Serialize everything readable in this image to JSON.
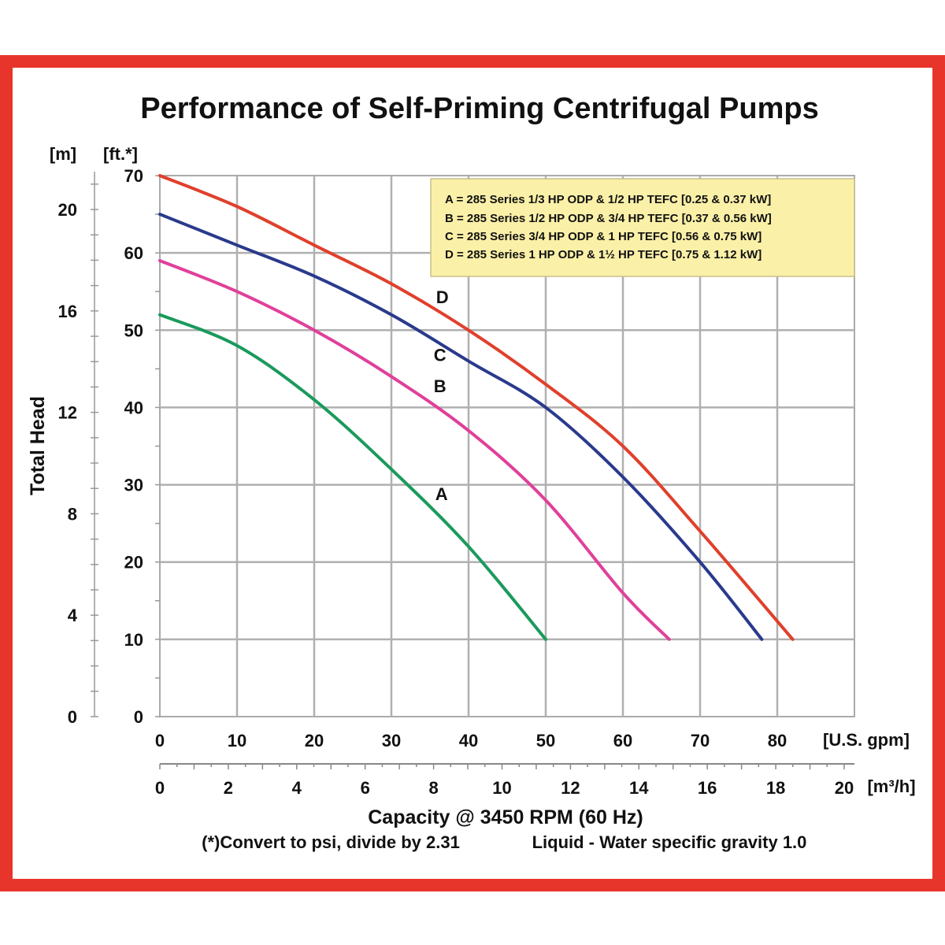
{
  "chart_data": {
    "type": "line",
    "title": "Performance of Self-Priming Centrifugal Pumps",
    "xlabel": "Capacity @ 3450 RPM (60 Hz)",
    "ylabel": "Total Head",
    "x_unit": "[U.S. gpm]",
    "x2_unit": "[m³/h]",
    "y_unit_ft": "[ft.*]",
    "y_unit_m": "[m]",
    "xlim": [
      0,
      90
    ],
    "ylim": [
      0,
      70
    ],
    "x_ticks": [
      "0",
      "10",
      "20",
      "30",
      "40",
      "50",
      "60",
      "70",
      "80"
    ],
    "x2_ticks": [
      "0",
      "2",
      "4",
      "6",
      "8",
      "10",
      "12",
      "14",
      "16",
      "18",
      "20"
    ],
    "y_ticks_ft": [
      "0",
      "10",
      "20",
      "30",
      "40",
      "50",
      "60",
      "70"
    ],
    "y_ticks_m": [
      "0",
      "4",
      "8",
      "12",
      "16",
      "20"
    ],
    "grid": true,
    "legend_position": "top-right",
    "legend": [
      "A = 285 Series 1/3 HP ODP & 1/2 HP TEFC [0.25 & 0.37 kW]",
      "B = 285 Series 1/2 HP ODP & 3/4 HP TEFC [0.37 & 0.56 kW]",
      "C = 285 Series 3/4 HP ODP & 1 HP TEFC [0.56 & 0.75 kW]",
      "D = 285 Series 1 HP ODP & 1½ HP TEFC [0.75 & 1.12 kW]"
    ],
    "series": [
      {
        "name": "A",
        "color": "#1a9a5c",
        "x": [
          0,
          10,
          20,
          30,
          40,
          50
        ],
        "y": [
          52,
          48,
          41,
          32,
          22,
          10
        ]
      },
      {
        "name": "B",
        "color": "#e0409a",
        "x": [
          0,
          10,
          20,
          30,
          40,
          50,
          60,
          66
        ],
        "y": [
          59,
          55,
          50,
          44,
          37,
          28,
          16,
          10
        ]
      },
      {
        "name": "C",
        "color": "#2a3a8c",
        "x": [
          0,
          10,
          20,
          30,
          40,
          50,
          60,
          70,
          78
        ],
        "y": [
          65,
          61,
          57,
          52,
          46,
          40,
          31,
          20,
          10
        ]
      },
      {
        "name": "D",
        "color": "#e0402c",
        "x": [
          0,
          10,
          20,
          30,
          40,
          50,
          60,
          70,
          82
        ],
        "y": [
          70,
          66,
          61,
          56,
          50,
          43,
          35,
          24,
          10
        ]
      }
    ],
    "annotations": [
      "(*)Convert to psi, divide by 2.31",
      "Liquid - Water specific gravity 1.0"
    ]
  }
}
